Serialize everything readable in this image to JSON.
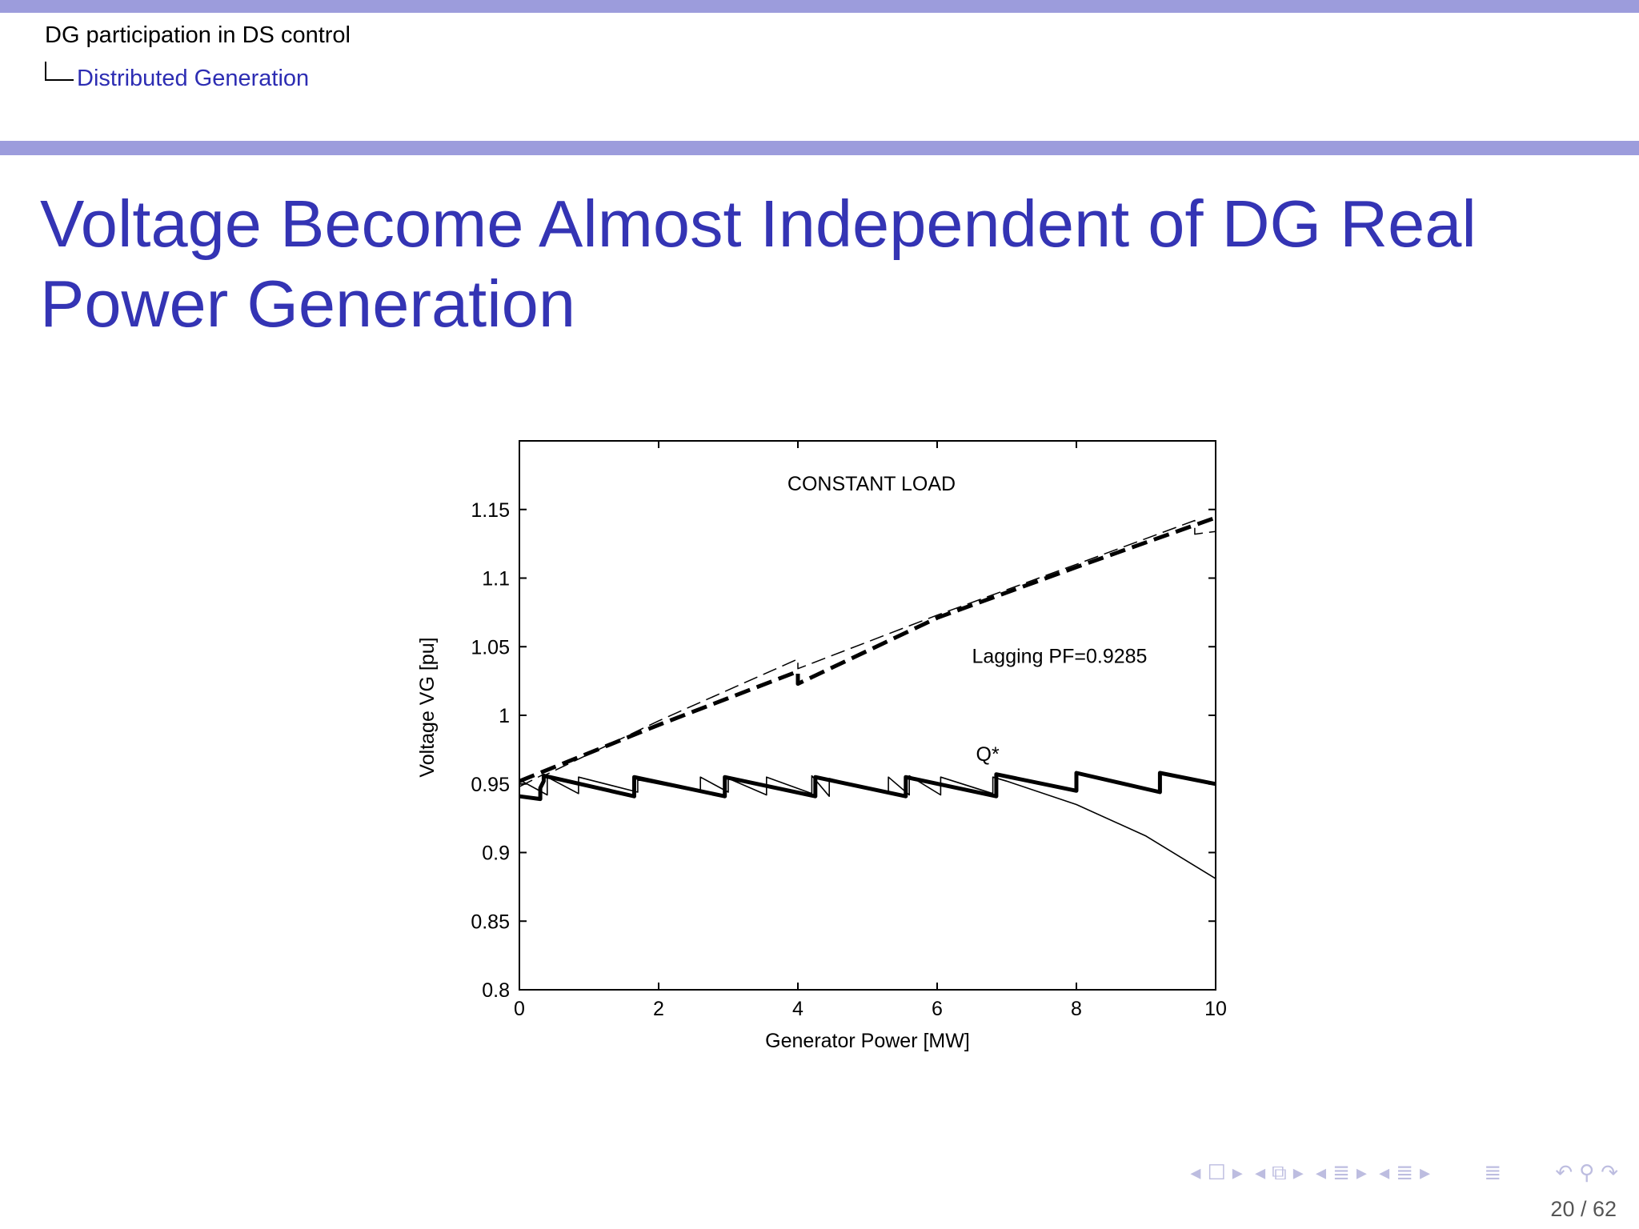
{
  "header": {
    "section": "DG participation in DS control",
    "subsection": "Distributed Generation"
  },
  "slide": {
    "title": "Voltage Become Almost Independent of DG Real Power Generation"
  },
  "chart_data": {
    "type": "line",
    "title": "CONSTANT LOAD",
    "xlabel": "Generator Power [MW]",
    "ylabel": "Voltage VG [pu]",
    "xlim": [
      0,
      10
    ],
    "ylim": [
      0.8,
      1.2
    ],
    "x_ticks": [
      "0",
      "2",
      "4",
      "6",
      "8",
      "10"
    ],
    "y_ticks": [
      "0.8",
      "0.85",
      "0.9",
      "0.95",
      "1",
      "1.05",
      "1.1",
      "1.15"
    ],
    "annotations": [
      "Lagging PF=0.9285",
      "Q*"
    ],
    "series": [
      {
        "style": "thin-dashed",
        "x": [
          0,
          0.35,
          0.35,
          2,
          4,
          4,
          6,
          8,
          9.7,
          9.7,
          10
        ],
        "y": [
          0.948,
          0.957,
          0.956,
          0.996,
          1.041,
          1.034,
          1.073,
          1.11,
          1.142,
          1.132,
          1.134
        ]
      },
      {
        "style": "thick-dashed",
        "x": [
          0,
          2,
          4,
          4,
          6,
          8,
          10
        ],
        "y": [
          0.952,
          0.993,
          1.032,
          1.023,
          1.071,
          1.108,
          1.144
        ]
      },
      {
        "style": "thin-solid",
        "x": [
          0,
          0.4,
          0.4,
          0.85,
          0.85,
          1.7,
          1.7,
          2.6,
          2.6,
          3.0,
          3.0,
          3.55,
          3.55,
          4.2,
          4.2,
          4.45,
          4.45,
          5.3,
          5.3,
          5.6,
          5.6,
          6.05,
          6.05,
          6.8,
          6.8,
          7,
          8,
          9,
          10
        ],
        "y": [
          0.953,
          0.942,
          0.955,
          0.943,
          0.955,
          0.944,
          0.953,
          0.944,
          0.955,
          0.944,
          0.954,
          0.942,
          0.955,
          0.943,
          0.956,
          0.941,
          0.954,
          0.943,
          0.955,
          0.942,
          0.956,
          0.942,
          0.955,
          0.943,
          0.955,
          0.952,
          0.935,
          0.912,
          0.881
        ]
      },
      {
        "style": "thick-solid",
        "x": [
          0,
          0.3,
          0.3,
          0.35,
          0.35,
          1.65,
          1.65,
          2.95,
          2.95,
          4.25,
          4.25,
          5.55,
          5.55,
          6.85,
          6.85,
          8.0,
          8.0,
          9.2,
          9.2,
          10
        ],
        "y": [
          0.941,
          0.939,
          0.947,
          0.952,
          0.956,
          0.941,
          0.955,
          0.941,
          0.955,
          0.941,
          0.955,
          0.941,
          0.955,
          0.941,
          0.957,
          0.945,
          0.958,
          0.944,
          0.958,
          0.95
        ]
      }
    ]
  },
  "nav": {
    "icons": [
      "arrow-left-icon",
      "frame-icon",
      "arrow-right-icon",
      "arrow-left-icon",
      "stack-icon",
      "arrow-right-icon",
      "arrow-left-icon",
      "subsection-icon",
      "arrow-right-icon",
      "arrow-left-icon",
      "section-icon",
      "arrow-right-icon",
      "toc-icon",
      "undo-icon",
      "search-icon",
      "redo-icon"
    ]
  },
  "footer": {
    "page": "20 / 62"
  }
}
